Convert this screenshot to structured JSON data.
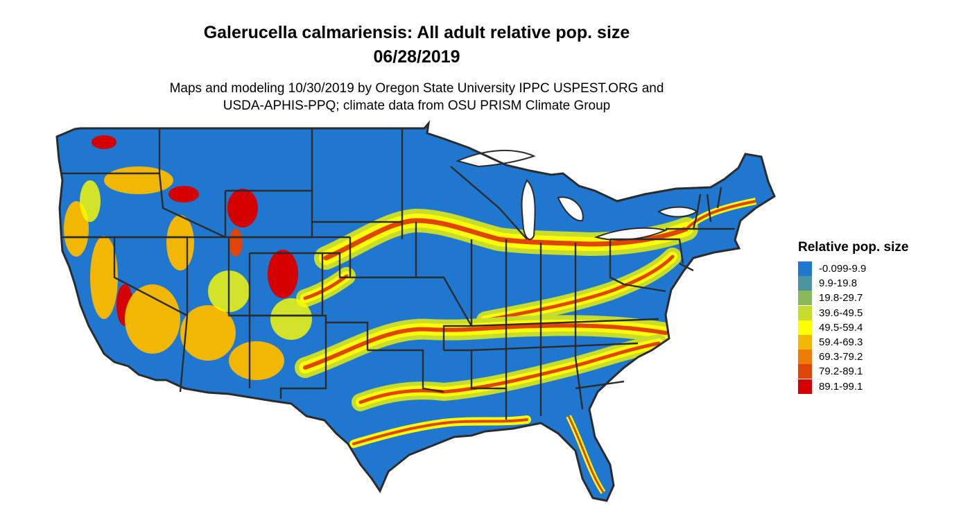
{
  "title_line1": "Galerucella calmariensis: All adult relative pop. size",
  "title_line2": "06/28/2019",
  "subtitle_line1": "Maps and modeling 10/30/2019 by Oregon State University IPPC USPEST.ORG and",
  "subtitle_line2": "USDA-APHIS-PPQ; climate data from OSU PRISM Climate Group",
  "legend": {
    "title": "Relative pop. size",
    "items": [
      {
        "label": "-0.099-9.9",
        "color": "#1f77d0"
      },
      {
        "label": "9.9-19.8",
        "color": "#4a95a0"
      },
      {
        "label": "19.8-29.7",
        "color": "#8bb85c"
      },
      {
        "label": "39.6-49.5",
        "color": "#c8dc2c"
      },
      {
        "label": "49.5-59.4",
        "color": "#ffff00"
      },
      {
        "label": "59.4-69.3",
        "color": "#f2b705"
      },
      {
        "label": "69.3-79.2",
        "color": "#ee7d06"
      },
      {
        "label": "79.2-89.1",
        "color": "#e04407"
      },
      {
        "label": "89.1-99.1",
        "color": "#d40000"
      }
    ]
  },
  "colors": {
    "base": "#1f77d0",
    "border": "#2b2b2b"
  }
}
